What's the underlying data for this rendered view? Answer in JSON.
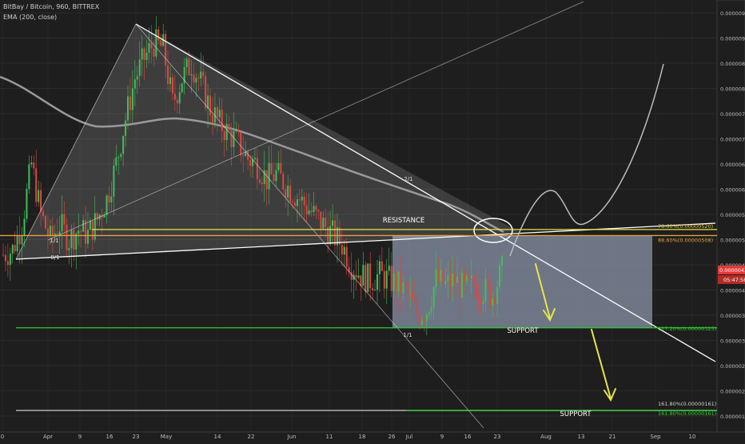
{
  "header": {
    "symbol": "BitBay / Bitcoin, 960, BITTREX",
    "indicator": "EMA (200, close)"
  },
  "colors": {
    "background": "#1e1e1e",
    "up_candle": "#3fbf5a",
    "down_candle": "#e0453f",
    "ema": "#9a9a9a",
    "trendline": "#ffffff",
    "yellow_level": "#e6e64a",
    "orange_level": "#e0a040",
    "support_green": "#2ecc2e",
    "box": "#8a93a8",
    "arrow": "#e6e64a",
    "price_badge": "#e53935"
  },
  "chart_data": {
    "type": "candlestick",
    "title": "BitBay / Bitcoin, 960, BITTREX",
    "ylim": [
      1.4e-06,
      9.6e-06
    ],
    "y_ticks": [
      "0.00000950",
      "0.00000900",
      "0.00000850",
      "0.00000800",
      "0.00000750",
      "0.00000700",
      "0.00000650",
      "0.00000600",
      "0.00000550",
      "0.00000500",
      "0.00000450",
      "0.00000400",
      "0.00000350",
      "0.00000300",
      "0.00000250",
      "0.00000200",
      "0.00000150"
    ],
    "x_ticks": [
      "0",
      "Apr",
      "9",
      "16",
      "23",
      "May",
      "14",
      "22",
      "Jun",
      "11",
      "18",
      "26",
      "Jul",
      "9",
      "16",
      "23",
      "Aug",
      "13",
      "21",
      "Sep",
      "10"
    ],
    "current_price": "0.00000439",
    "countdown": "05:47:58",
    "levels": [
      {
        "label": "78.60%(0.00000520)",
        "value": 5.2e-06
      },
      {
        "label": "88.60%(0.00000508)",
        "value": 5.08e-06
      },
      {
        "label": "127.20%(0.00000325)",
        "value": 3.25e-06
      },
      {
        "label": "161.80%(0.00000161)",
        "value": 1.61e-06
      },
      {
        "label": "161.80%(0.00000161)",
        "value": 1.61e-06
      }
    ],
    "annotations": [
      "RESISTANCE",
      "SUPPORT",
      "SUPPORT",
      "2/1",
      "8/1",
      "1/1",
      "1/1"
    ],
    "closes": [
      4.7,
      4.8,
      5.3,
      6.5,
      5.5,
      5.0,
      5.3,
      5.0,
      5.2,
      5.1,
      5.4,
      5.8,
      6.5,
      7.4,
      8.2,
      8.6,
      8.9,
      8.8,
      7.7,
      8.2,
      8.5,
      8.1,
      7.6,
      7.3,
      7.1,
      6.9,
      6.6,
      6.5,
      6.2,
      6.3,
      6.1,
      5.9,
      5.7,
      5.5,
      5.3,
      5.1,
      4.9,
      4.5,
      4.3,
      4.2,
      4.3,
      4.2,
      4.1,
      3.9,
      3.5,
      3.6,
      4.2,
      4.1,
      4.2,
      4.0,
      4.1,
      4.0,
      3.9,
      4.39
    ]
  }
}
